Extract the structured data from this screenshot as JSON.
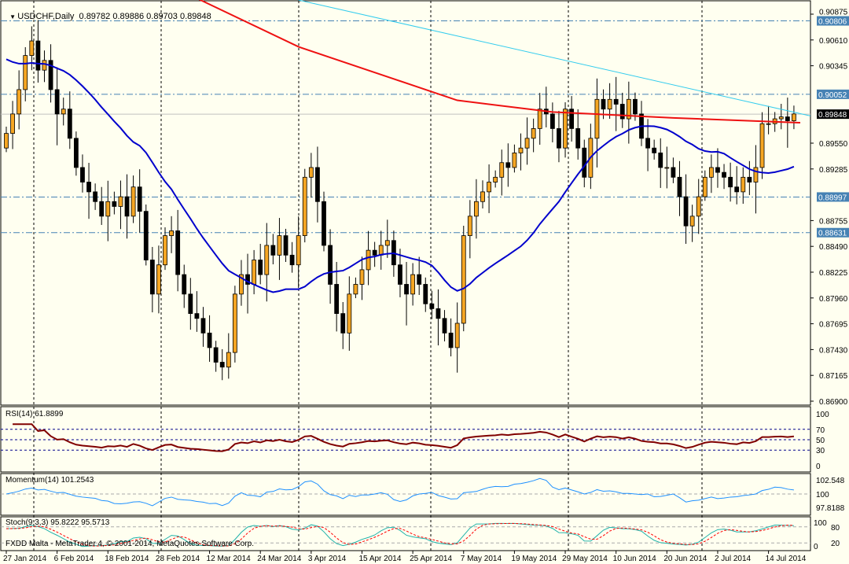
{
  "header": {
    "symbol": "USDCHF,Daily",
    "ohlc": "0.89782 0.89886 0.89703 0.89848"
  },
  "footer": {
    "copyright": "FXDD Malta - MetaTrader 4, © 2001-2014, MetaQuotes Software Corp."
  },
  "colors": {
    "background": "#fffff0",
    "bull": "#f5a623",
    "bear": "#000000",
    "sma_fast": "#0000cc",
    "sma_slow": "#ee1111",
    "trendline": "#33ccee",
    "level": "#4682b4",
    "rsi": "#800000",
    "momentum": "#1e90ff",
    "stoch_main": "#20b2aa",
    "stoch_signal": "#ff0000"
  },
  "chart_data": {
    "type": "candlestick",
    "symbol": "USDCHF",
    "timeframe": "Daily",
    "ylim": [
      0.869,
      0.90875
    ],
    "price_ticks": [
      "0.90875",
      "0.90610",
      "0.90345",
      "0.89550",
      "0.89285",
      "0.88755",
      "0.88490",
      "0.88225",
      "0.87960",
      "0.87695",
      "0.87430",
      "0.87165",
      "0.86900"
    ],
    "levels": [
      "0.90806",
      "0.90052",
      "0.88997",
      "0.88631"
    ],
    "current_price": "0.89848",
    "date_labels": [
      "27 Jan 2014",
      "6 Feb 2014",
      "18 Feb 2014",
      "28 Feb 2014",
      "12 Mar 2014",
      "24 Mar 2014",
      "3 Apr 2014",
      "15 Apr 2014",
      "25 Apr 2014",
      "7 May 2014",
      "19 May 2014",
      "29 May 2014",
      "10 Jun 2014",
      "20 Jun 2014",
      "2 Jul 2014",
      "14 Jul 2014"
    ],
    "first_open": 0.895,
    "closes": [
      0.8965,
      0.8985,
      0.901,
      0.9045,
      0.906,
      0.903,
      0.904,
      0.901,
      0.8985,
      0.899,
      0.896,
      0.893,
      0.8915,
      0.8905,
      0.8895,
      0.888,
      0.8895,
      0.889,
      0.89,
      0.888,
      0.891,
      0.8885,
      0.8835,
      0.88,
      0.883,
      0.886,
      0.8865,
      0.882,
      0.88,
      0.878,
      0.8775,
      0.876,
      0.8745,
      0.873,
      0.8725,
      0.874,
      0.88,
      0.882,
      0.881,
      0.8835,
      0.882,
      0.885,
      0.884,
      0.886,
      0.884,
      0.883,
      0.886,
      0.892,
      0.893,
      0.8895,
      0.885,
      0.881,
      0.878,
      0.876,
      0.88,
      0.881,
      0.8825,
      0.8845,
      0.884,
      0.885,
      0.8855,
      0.883,
      0.881,
      0.88,
      0.882,
      0.881,
      0.879,
      0.8785,
      0.8775,
      0.876,
      0.8745,
      0.877,
      0.886,
      0.888,
      0.8895,
      0.8905,
      0.8915,
      0.892,
      0.8935,
      0.893,
      0.8945,
      0.895,
      0.896,
      0.897,
      0.899,
      0.8985,
      0.897,
      0.895,
      0.899,
      0.897,
      0.895,
      0.892,
      0.896,
      0.9,
      0.899,
      0.9,
      0.8995,
      0.898,
      0.9,
      0.8985,
      0.896,
      0.895,
      0.8945,
      0.893,
      0.893,
      0.892,
      0.89,
      0.887,
      0.888,
      0.89,
      0.892,
      0.893,
      0.8925,
      0.892,
      0.891,
      0.8905,
      0.892,
      0.8915,
      0.893,
      0.8975,
      0.8975,
      0.898,
      0.8982,
      0.8978,
      0.8985
    ],
    "sma_slow_points": [
      [
        28,
        0.911
      ],
      [
        46,
        0.9054
      ],
      [
        61,
        0.9021
      ],
      [
        71,
        0.8999
      ],
      [
        86,
        0.8987
      ],
      [
        105,
        0.8981
      ],
      [
        125,
        0.8976
      ]
    ],
    "trendline": [
      [
        46,
        0.9102
      ],
      [
        126.6,
        0.8983
      ]
    ],
    "rsi": {
      "label": "RSI(14) 61.8899",
      "ticks": [
        "100",
        "70",
        "50",
        "30",
        "0"
      ]
    },
    "momentum": {
      "label": "Momentum(14) 101.2543",
      "ticks": [
        "102.548",
        "100",
        "97.8188"
      ]
    },
    "stoch": {
      "label": "Stoch(9,3,3) 95.8222 95.5713",
      "ticks": [
        "100",
        "80",
        "20",
        "0"
      ]
    }
  }
}
